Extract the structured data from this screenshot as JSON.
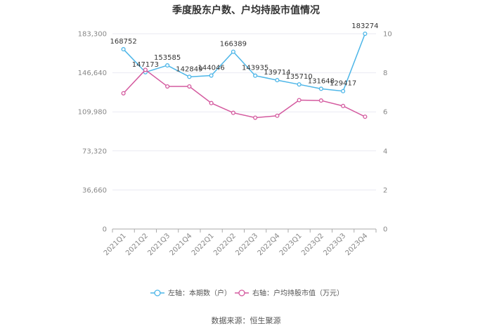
{
  "title": "季度股东户数、户均持股市值情况",
  "source": "数据来源：恒生聚源",
  "colors": {
    "left_series": "#4db6e8",
    "right_series": "#d45a9f",
    "grid": "#e9e9f2",
    "axis": "#aaaaaa"
  },
  "chart_data": {
    "type": "line",
    "categories": [
      "2021Q1",
      "2021Q2",
      "2021Q3",
      "2021Q4",
      "2022Q1",
      "2022Q2",
      "2022Q3",
      "2022Q4",
      "2023Q1",
      "2023Q2",
      "2023Q3",
      "2023Q4"
    ],
    "left_axis": {
      "ylim": [
        0,
        183300
      ],
      "ticks": [
        0,
        36660,
        73320,
        109980,
        146640,
        183300
      ],
      "tick_labels": [
        "0",
        "36,660",
        "73,320",
        "109,980",
        "146,640",
        "183,300"
      ]
    },
    "right_axis": {
      "ylim": [
        0,
        10
      ],
      "ticks": [
        0,
        2,
        4,
        6,
        8,
        10
      ],
      "tick_labels": [
        "0",
        "2",
        "4",
        "6",
        "8",
        "10"
      ]
    },
    "series": [
      {
        "name": "左轴：本期数（户）",
        "axis": "left",
        "values": [
          168752,
          147173,
          153585,
          142849,
          144046,
          166389,
          143935,
          139714,
          135710,
          131648,
          129417,
          183274
        ],
        "labels": [
          "168752",
          "147173",
          "153585",
          "142849",
          "144046",
          "166389",
          "143935",
          "139714",
          "135710",
          "131648",
          "129417",
          "183274"
        ]
      },
      {
        "name": "右轴：户均持股市值（万元）",
        "axis": "right",
        "values": [
          6.95,
          8.15,
          7.3,
          7.3,
          6.45,
          5.95,
          5.7,
          5.8,
          6.6,
          6.58,
          6.3,
          5.75
        ]
      }
    ],
    "legend_position": "bottom",
    "grid": true
  }
}
